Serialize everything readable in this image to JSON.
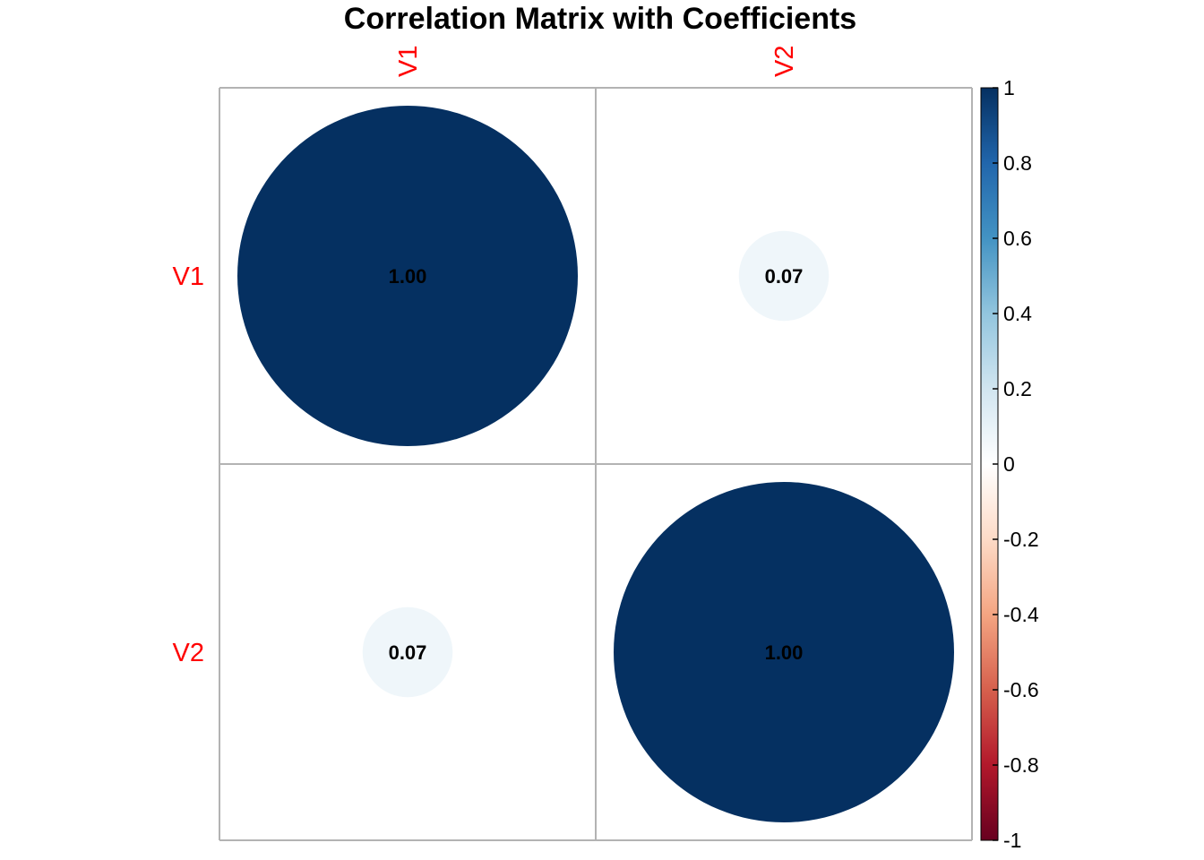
{
  "chart_data": {
    "type": "heatmap",
    "title": "Correlation Matrix with Coefficients",
    "variables": [
      "V1",
      "V2"
    ],
    "matrix": [
      [
        1.0,
        0.07
      ],
      [
        0.07,
        1.0
      ]
    ],
    "value_labels": [
      [
        "1.00",
        "0.07"
      ],
      [
        "0.07",
        "1.00"
      ]
    ],
    "method": "circle",
    "label_color": "#ff0000",
    "grid_color": "#b3b3b3",
    "colorbar": {
      "position": "right",
      "range": [
        -1,
        1
      ],
      "ticks": [
        1,
        0.8,
        0.6,
        0.4,
        0.2,
        0,
        -0.2,
        -0.4,
        -0.6,
        -0.8,
        -1
      ],
      "tick_labels": [
        "1",
        "0.8",
        "0.6",
        "0.4",
        "0.2",
        "0",
        "-0.2",
        "-0.4",
        "-0.6",
        "-0.8",
        "-1"
      ],
      "palette": [
        "#67001f",
        "#b2182b",
        "#d6604d",
        "#f4a582",
        "#fddbc7",
        "#ffffff",
        "#d1e5f0",
        "#92c5de",
        "#4393c3",
        "#2166ac",
        "#053061"
      ]
    }
  }
}
